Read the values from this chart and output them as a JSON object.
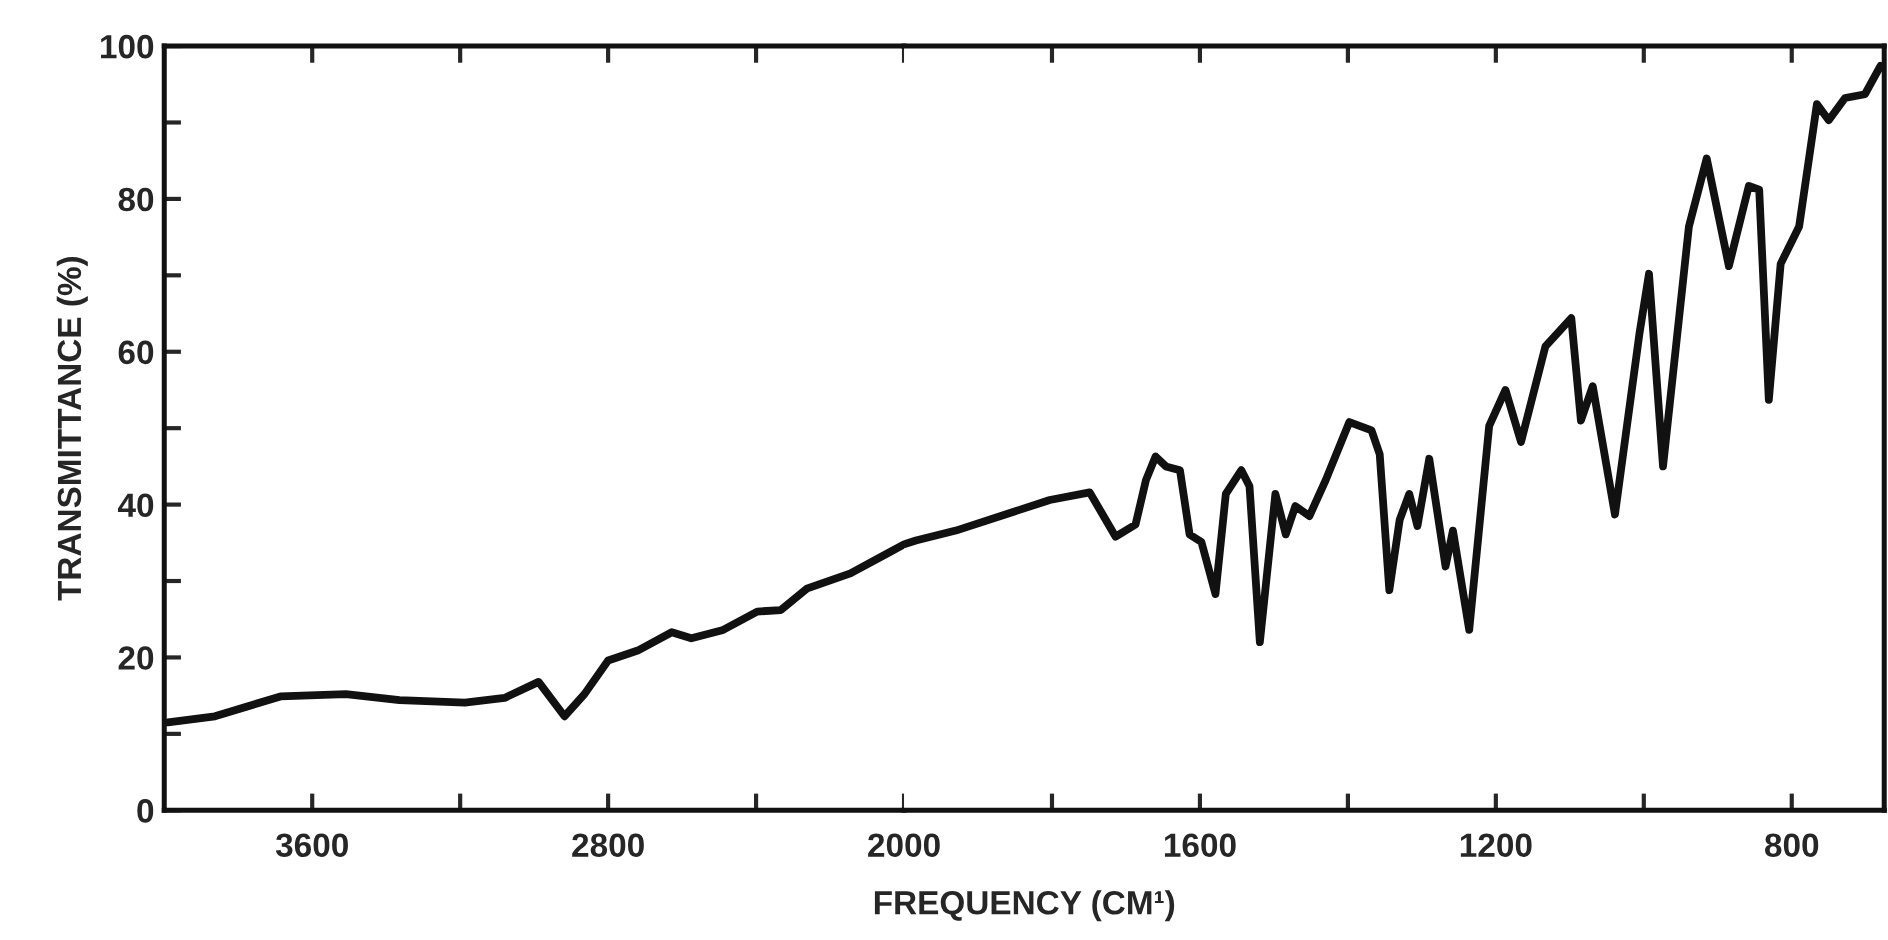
{
  "chart_data": [
    {
      "type": "line",
      "ylabel": "TRANSMITTANCE (%)",
      "xlim": [
        4000,
        2000
      ],
      "ylim": [
        0,
        100
      ],
      "xticks": [
        3600,
        {
          "value": 3200,
          "label": null
        },
        2800,
        {
          "value": 2400,
          "label": null
        },
        2000
      ],
      "yticks": [
        0,
        {
          "value": 10,
          "label": null
        },
        20,
        {
          "value": 30,
          "label": null
        },
        40,
        {
          "value": 50,
          "label": null
        },
        60,
        {
          "value": 70,
          "label": null
        },
        80,
        {
          "value": 90,
          "label": null
        },
        100
      ],
      "grid": false,
      "legend": false,
      "marker": "none",
      "line_style": "solid",
      "series": [
        {
          "color": "#111111",
          "x": [
            3990,
            3863,
            3686,
            3509,
            3364,
            3187,
            3080,
            2988,
            2918,
            2864,
            2800,
            2720,
            2628,
            2575,
            2489,
            2397,
            2333,
            2263,
            2145,
            2038,
            2000
          ],
          "values": [
            11.5,
            12.3,
            14.9,
            15.2,
            14.4,
            14.1,
            14.7,
            16.8,
            12.3,
            15.2,
            19.6,
            20.9,
            23.3,
            22.5,
            23.6,
            26,
            26.2,
            29,
            31,
            33.8,
            34.8
          ]
        }
      ]
    },
    {
      "type": "line",
      "xlabel": "FREQUENCY (CM¹)",
      "xlim": [
        2000,
        675
      ],
      "ylim": [
        0,
        100
      ],
      "tick_labels": "x",
      "xticks": [
        {
          "value": 1800,
          "label": null
        },
        1600,
        {
          "value": 1400,
          "label": null
        },
        1200,
        {
          "value": 1000,
          "label": null
        },
        800
      ],
      "grid": false,
      "legend": false,
      "marker": "none",
      "line_style": "solid",
      "series": [
        {
          "color": "#111111",
          "x": [
            2000,
            1984,
            1930,
            1803,
            1749,
            1714,
            1687,
            1673,
            1660,
            1646,
            1627,
            1614,
            1598,
            1579,
            1565,
            1544,
            1533,
            1519,
            1498,
            1484,
            1471,
            1452,
            1430,
            1398,
            1368,
            1357,
            1344,
            1330,
            1317,
            1306,
            1290,
            1268,
            1258,
            1236,
            1209,
            1187,
            1166,
            1133,
            1098,
            1085,
            1069,
            1039,
            1006,
            993,
            974,
            939,
            915,
            885,
            858,
            844,
            831,
            815,
            790,
            766,
            750,
            728,
            701,
            680
          ],
          "values": [
            34.8,
            35.3,
            36.6,
            40.6,
            41.6,
            35.8,
            37.4,
            43.2,
            46.3,
            45,
            44.5,
            36.1,
            35.1,
            28.3,
            41.4,
            44.5,
            42.4,
            22,
            41.4,
            36.1,
            39.8,
            38.5,
            43.2,
            50.8,
            49.7,
            46.6,
            28.8,
            38,
            41.4,
            37.2,
            46,
            31.9,
            36.6,
            23.6,
            50.3,
            55,
            48.2,
            60.7,
            64.4,
            51,
            55.5,
            38.7,
            62.3,
            70.2,
            45,
            76.4,
            85.3,
            71.2,
            81.7,
            81.2,
            53.7,
            71.5,
            76.4,
            92.4,
            90.3,
            93.2,
            93.7,
            97.4
          ]
        }
      ]
    }
  ]
}
